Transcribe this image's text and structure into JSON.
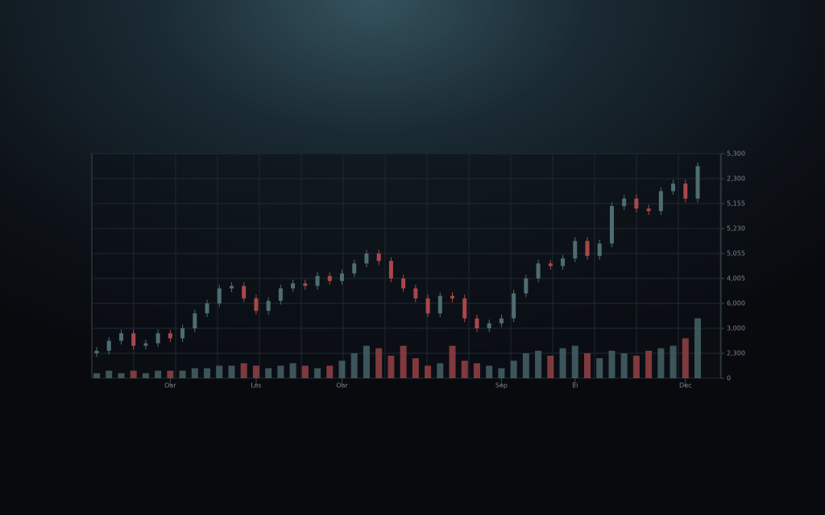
{
  "chart_data": {
    "type": "candlestick",
    "categories": [
      null,
      null,
      null,
      null,
      null,
      null,
      "Oar",
      null,
      null,
      null,
      null,
      null,
      null,
      "Los",
      null,
      null,
      null,
      null,
      null,
      null,
      "Oar",
      null,
      null,
      null,
      null,
      null,
      null,
      null,
      null,
      null,
      null,
      null,
      null,
      "Sep",
      null,
      null,
      null,
      null,
      null,
      "Ei",
      null,
      null,
      null,
      null,
      null,
      null,
      null,
      null,
      "Dec",
      null
    ],
    "open": [
      1.0,
      1.1,
      1.5,
      1.8,
      1.3,
      1.4,
      1.8,
      1.6,
      2.0,
      2.6,
      3.0,
      3.6,
      3.7,
      3.2,
      2.7,
      3.1,
      3.6,
      3.8,
      3.7,
      4.1,
      3.9,
      4.2,
      4.6,
      5.0,
      4.7,
      4.0,
      3.6,
      3.2,
      2.6,
      3.3,
      3.2,
      2.4,
      2.0,
      2.2,
      2.4,
      3.4,
      4.0,
      4.6,
      4.5,
      4.8,
      5.5,
      4.9,
      5.4,
      6.9,
      7.2,
      6.8,
      6.7,
      7.5,
      7.8,
      7.2
    ],
    "high": [
      1.25,
      1.65,
      1.95,
      1.95,
      1.55,
      1.95,
      1.95,
      2.15,
      2.75,
      3.15,
      3.75,
      3.85,
      3.85,
      3.35,
      3.25,
      3.75,
      3.95,
      3.95,
      4.25,
      4.25,
      4.35,
      4.75,
      5.15,
      5.15,
      4.85,
      4.15,
      3.75,
      3.35,
      3.45,
      3.45,
      3.35,
      2.55,
      2.35,
      2.55,
      3.55,
      4.15,
      4.75,
      4.75,
      4.95,
      5.65,
      5.65,
      5.55,
      7.05,
      7.35,
      7.35,
      6.95,
      7.65,
      7.95,
      7.95,
      8.65
    ],
    "low": [
      0.85,
      0.95,
      1.35,
      1.15,
      1.15,
      1.25,
      1.45,
      1.45,
      1.85,
      2.45,
      2.85,
      3.45,
      3.05,
      2.55,
      2.55,
      2.95,
      3.45,
      3.55,
      3.55,
      3.75,
      3.75,
      4.05,
      4.45,
      4.55,
      3.85,
      3.45,
      3.05,
      2.45,
      2.45,
      3.05,
      2.25,
      1.85,
      1.85,
      2.05,
      2.25,
      3.25,
      3.85,
      4.35,
      4.35,
      4.65,
      4.75,
      4.75,
      5.25,
      6.75,
      6.65,
      6.55,
      6.55,
      7.35,
      7.05,
      7.05
    ],
    "close": [
      1.1,
      1.5,
      1.8,
      1.3,
      1.4,
      1.8,
      1.6,
      2.0,
      2.6,
      3.0,
      3.6,
      3.7,
      3.2,
      2.7,
      3.1,
      3.6,
      3.8,
      3.7,
      4.1,
      3.9,
      4.2,
      4.6,
      5.0,
      4.7,
      4.0,
      3.6,
      3.2,
      2.6,
      3.3,
      3.2,
      2.4,
      2.0,
      2.2,
      2.4,
      3.4,
      4.0,
      4.6,
      4.5,
      4.8,
      5.5,
      4.9,
      5.4,
      6.9,
      7.2,
      6.8,
      6.7,
      7.5,
      7.8,
      7.2,
      8.5
    ],
    "volume": [
      0.2,
      0.3,
      0.2,
      0.3,
      0.2,
      0.3,
      0.3,
      0.3,
      0.4,
      0.4,
      0.5,
      0.5,
      0.6,
      0.5,
      0.4,
      0.5,
      0.6,
      0.5,
      0.4,
      0.5,
      0.7,
      1.0,
      1.3,
      1.2,
      0.9,
      1.3,
      0.8,
      0.5,
      0.6,
      1.3,
      0.7,
      0.6,
      0.5,
      0.4,
      0.7,
      1.0,
      1.1,
      0.9,
      1.2,
      1.3,
      1.0,
      0.8,
      1.1,
      1.0,
      0.9,
      1.1,
      1.2,
      1.3,
      1.6,
      2.4
    ],
    "up_color": "#4d6d72",
    "down_color": "#a8484b",
    "ylim": [
      0,
      9
    ],
    "yticks": [
      {
        "value": 0,
        "label": "0"
      },
      {
        "value": 1,
        "label": "2,300"
      },
      {
        "value": 2,
        "label": "3,000"
      },
      {
        "value": 3,
        "label": "6,000"
      },
      {
        "value": 4,
        "label": "4,005"
      },
      {
        "value": 5,
        "label": "5,055"
      },
      {
        "value": 6,
        "label": "5,230"
      },
      {
        "value": 7,
        "label": "5,155"
      },
      {
        "value": 8,
        "label": "2,300"
      },
      {
        "value": 9,
        "label": "5,300"
      }
    ],
    "grid": true
  }
}
